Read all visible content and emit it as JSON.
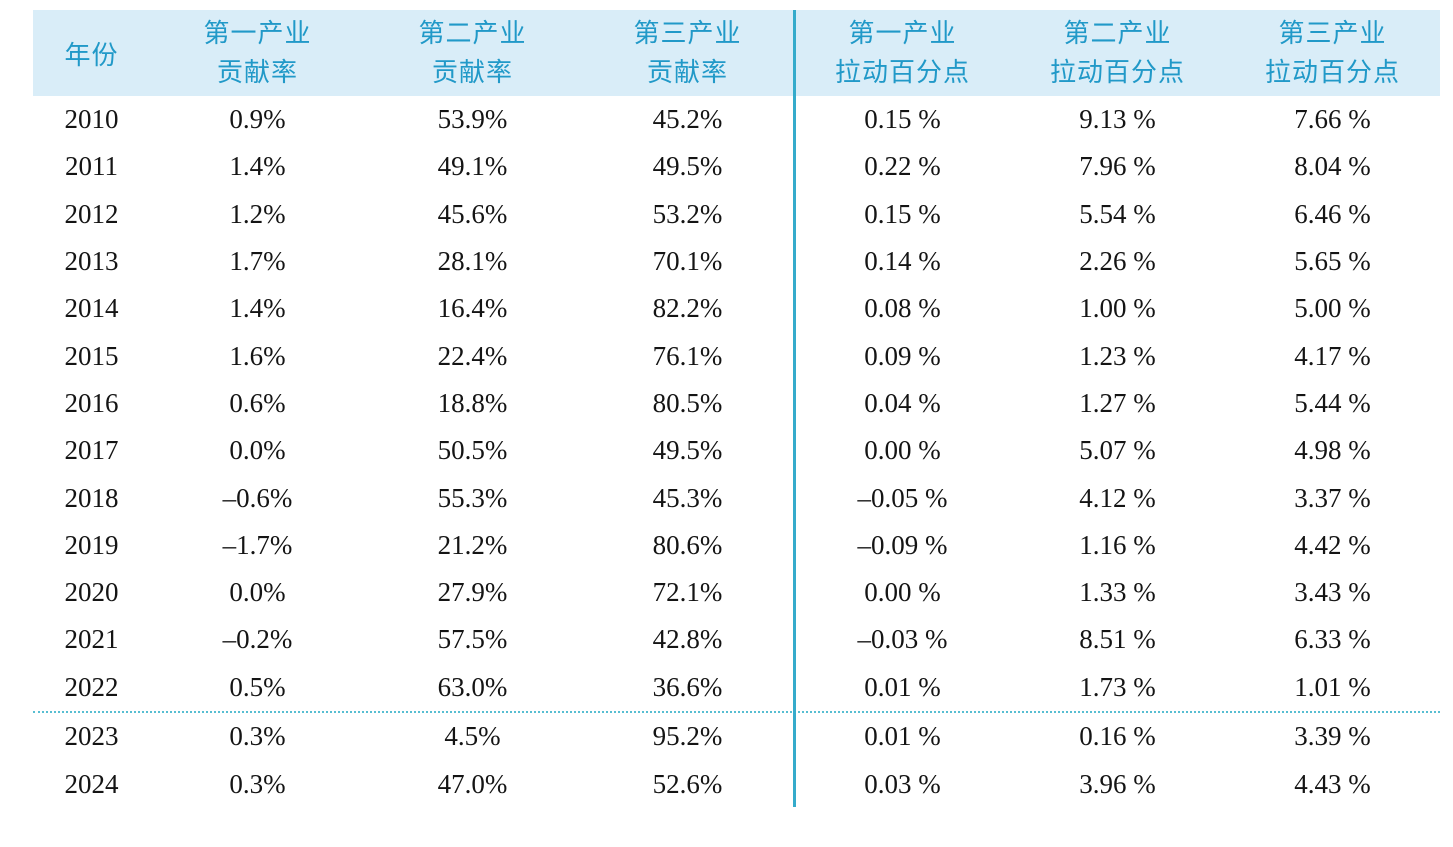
{
  "colors": {
    "header_background": "#d9edf8",
    "header_text": "#2199c8",
    "divider_line": "#35abcb",
    "dotted_separator": "#58bed2",
    "body_text": "#141414"
  },
  "table": {
    "header": {
      "year": "年份",
      "columns": [
        {
          "line1": "第一产业",
          "line2": "贡献率"
        },
        {
          "line1": "第二产业",
          "line2": "贡献率"
        },
        {
          "line1": "第三产业",
          "line2": "贡献率"
        },
        {
          "line1": "第一产业",
          "line2": "拉动百分点"
        },
        {
          "line1": "第二产业",
          "line2": "拉动百分点"
        },
        {
          "line1": "第三产业",
          "line2": "拉动百分点"
        }
      ]
    },
    "rows_main": [
      {
        "year": "2010",
        "values": [
          "0.9%",
          "53.9%",
          "45.2%",
          "0.15 %",
          "9.13 %",
          "7.66 %"
        ]
      },
      {
        "year": "2011",
        "values": [
          "1.4%",
          "49.1%",
          "49.5%",
          "0.22 %",
          "7.96 %",
          "8.04 %"
        ]
      },
      {
        "year": "2012",
        "values": [
          "1.2%",
          "45.6%",
          "53.2%",
          "0.15 %",
          "5.54 %",
          "6.46 %"
        ]
      },
      {
        "year": "2013",
        "values": [
          "1.7%",
          "28.1%",
          "70.1%",
          "0.14 %",
          "2.26 %",
          "5.65 %"
        ]
      },
      {
        "year": "2014",
        "values": [
          "1.4%",
          "16.4%",
          "82.2%",
          "0.08 %",
          "1.00 %",
          "5.00 %"
        ]
      },
      {
        "year": "2015",
        "values": [
          "1.6%",
          "22.4%",
          "76.1%",
          "0.09 %",
          "1.23 %",
          "4.17 %"
        ]
      },
      {
        "year": "2016",
        "values": [
          "0.6%",
          "18.8%",
          "80.5%",
          "0.04 %",
          "1.27 %",
          "5.44 %"
        ]
      },
      {
        "year": "2017",
        "values": [
          "0.0%",
          "50.5%",
          "49.5%",
          "0.00 %",
          "5.07 %",
          "4.98 %"
        ]
      },
      {
        "year": "2018",
        "values": [
          "–0.6%",
          "55.3%",
          "45.3%",
          "–0.05 %",
          "4.12 %",
          "3.37 %"
        ]
      },
      {
        "year": "2019",
        "values": [
          "–1.7%",
          "21.2%",
          "80.6%",
          "–0.09 %",
          "1.16 %",
          "4.42 %"
        ]
      },
      {
        "year": "2020",
        "values": [
          "0.0%",
          "27.9%",
          "72.1%",
          "0.00 %",
          "1.33 %",
          "3.43 %"
        ]
      },
      {
        "year": "2021",
        "values": [
          "–0.2%",
          "57.5%",
          "42.8%",
          "–0.03 %",
          "8.51 %",
          "6.33 %"
        ]
      },
      {
        "year": "2022",
        "values": [
          "0.5%",
          "63.0%",
          "36.6%",
          "0.01 %",
          "1.73 %",
          "1.01 %"
        ]
      }
    ],
    "rows_footer": [
      {
        "year": "2023",
        "values": [
          "0.3%",
          "4.5%",
          "95.2%",
          "0.01 %",
          "0.16 %",
          "3.39 %"
        ]
      },
      {
        "year": "2024",
        "values": [
          "0.3%",
          "47.0%",
          "52.6%",
          "0.03 %",
          "3.96 %",
          "4.43 %"
        ]
      }
    ]
  }
}
